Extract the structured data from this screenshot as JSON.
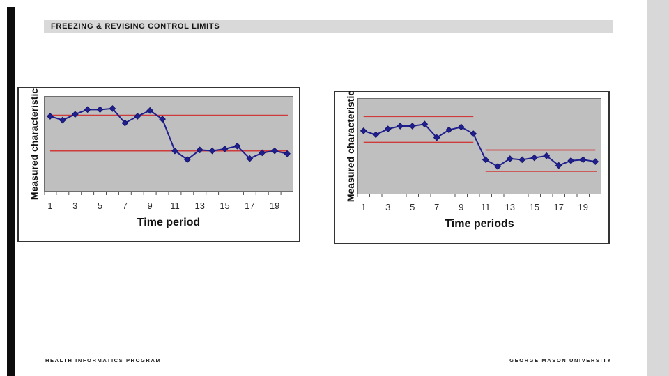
{
  "slide": {
    "title": "FREEZING & REVISING CONTROL LIMITS",
    "footer_left": "HEALTH INFORMATICS PROGRAM",
    "footer_right": "GEORGE MASON UNIVERSITY"
  },
  "colors": {
    "series": "#1f1f8f",
    "series_edge": "#101068",
    "control_line": "#cf3a3a",
    "plot_bg": "#bfbfbf",
    "plot_border": "#6e6e6e",
    "tick": "#4d4d4d",
    "title_bar_bg": "#d9d9d9",
    "side_strip": "#d8d8d8",
    "left_bar": "#0d0d0d"
  },
  "chart_data": [
    {
      "type": "line",
      "title": "",
      "xlabel": "Time period",
      "ylabel": "Measured characteristic",
      "x": [
        1,
        2,
        3,
        4,
        5,
        6,
        7,
        8,
        9,
        10,
        11,
        12,
        13,
        14,
        15,
        16,
        17,
        18,
        19,
        20
      ],
      "x_tick_labels": [
        "1",
        "3",
        "5",
        "7",
        "9",
        "11",
        "13",
        "15",
        "17",
        "19"
      ],
      "values": [
        79,
        75,
        81,
        86,
        86,
        87,
        72,
        79,
        85,
        76,
        43,
        34,
        44,
        43,
        45,
        48,
        35,
        41,
        43,
        40
      ],
      "control_lines": [
        {
          "from": 0.5,
          "to": 19.55,
          "value": 80
        },
        {
          "from": 0.5,
          "to": 19.55,
          "value": 43
        }
      ],
      "ylim": [
        0,
        100
      ],
      "marker": "diamond",
      "grid": false,
      "legend": "none"
    },
    {
      "type": "line",
      "title": "",
      "xlabel": "Time periods",
      "ylabel": "Measured characteristic",
      "x": [
        1,
        2,
        3,
        4,
        5,
        6,
        7,
        8,
        9,
        10,
        11,
        12,
        13,
        14,
        15,
        16,
        17,
        18,
        19,
        20
      ],
      "x_tick_labels": [
        "1",
        "3",
        "5",
        "7",
        "9",
        "11",
        "13",
        "15",
        "17",
        "19"
      ],
      "values": [
        66,
        62,
        68,
        71,
        71,
        73,
        59,
        67,
        70,
        63,
        36,
        29,
        37,
        36,
        38,
        40,
        30,
        35,
        36,
        34
      ],
      "control_lines": [
        {
          "from": 0.5,
          "to": 9.5,
          "value": 81
        },
        {
          "from": 0.5,
          "to": 9.5,
          "value": 54
        },
        {
          "from": 10.5,
          "to": 19.5,
          "value": 46
        },
        {
          "from": 10.5,
          "to": 19.6,
          "value": 24
        }
      ],
      "ylim": [
        0,
        100
      ],
      "marker": "diamond",
      "grid": false,
      "legend": "none"
    }
  ]
}
